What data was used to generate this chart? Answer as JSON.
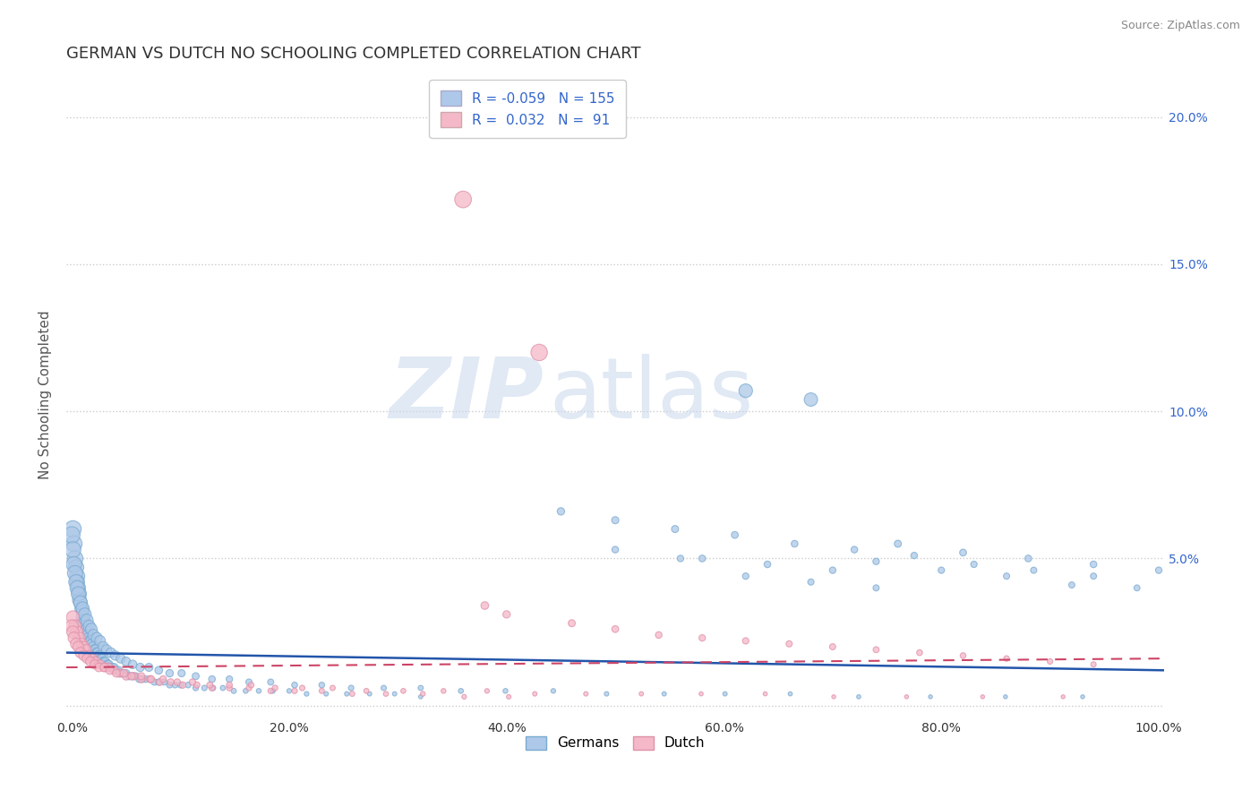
{
  "title": "GERMAN VS DUTCH NO SCHOOLING COMPLETED CORRELATION CHART",
  "source": "Source: ZipAtlas.com",
  "ylabel": "No Schooling Completed",
  "xlabel": "",
  "watermark_zip": "ZIP",
  "watermark_atlas": "atlas",
  "german_R": -0.059,
  "german_N": 155,
  "dutch_R": 0.032,
  "dutch_N": 91,
  "german_color": "#adc8e8",
  "german_edge_color": "#7aaad0",
  "dutch_color": "#f4b8c8",
  "dutch_edge_color": "#e090a8",
  "german_line_color": "#2255aa",
  "dutch_line_color": "#cc4466",
  "background_color": "#ffffff",
  "grid_color": "#cccccc",
  "xlim": [
    -0.005,
    1.005
  ],
  "ylim": [
    -0.004,
    0.215
  ],
  "xticks": [
    0.0,
    0.2,
    0.4,
    0.6,
    0.8,
    1.0
  ],
  "xtick_labels": [
    "0.0%",
    "20.0%",
    "40.0%",
    "60.0%",
    "80.0%",
    "100.0%"
  ],
  "yticks": [
    0.0,
    0.05,
    0.1,
    0.15,
    0.2
  ],
  "ytick_labels_left": [
    "",
    "",
    "",
    "",
    ""
  ],
  "ytick_labels_right": [
    "",
    "5.0%",
    "10.0%",
    "15.0%",
    "20.0%"
  ],
  "legend_labels": [
    "Germans",
    "Dutch"
  ],
  "title_color": "#333333",
  "axis_label_color": "#555555",
  "tick_color": "#333333",
  "stat_color": "#3366cc",
  "german_scatter_x": [
    0.001,
    0.002,
    0.003,
    0.004,
    0.005,
    0.005,
    0.006,
    0.007,
    0.007,
    0.008,
    0.009,
    0.01,
    0.01,
    0.011,
    0.012,
    0.013,
    0.014,
    0.015,
    0.015,
    0.016,
    0.017,
    0.018,
    0.019,
    0.02,
    0.021,
    0.022,
    0.023,
    0.024,
    0.025,
    0.026,
    0.027,
    0.028,
    0.029,
    0.03,
    0.031,
    0.033,
    0.034,
    0.035,
    0.037,
    0.039,
    0.041,
    0.043,
    0.045,
    0.047,
    0.05,
    0.053,
    0.056,
    0.059,
    0.062,
    0.065,
    0.068,
    0.072,
    0.076,
    0.08,
    0.085,
    0.09,
    0.095,
    0.1,
    0.107,
    0.114,
    0.122,
    0.13,
    0.139,
    0.149,
    0.16,
    0.172,
    0.185,
    0.2,
    0.216,
    0.234,
    0.253,
    0.274,
    0.297,
    0.321,
    0.0,
    0.001,
    0.002,
    0.003,
    0.004,
    0.005,
    0.006,
    0.008,
    0.01,
    0.012,
    0.014,
    0.016,
    0.018,
    0.02,
    0.023,
    0.026,
    0.029,
    0.032,
    0.036,
    0.04,
    0.045,
    0.05,
    0.056,
    0.063,
    0.071,
    0.08,
    0.09,
    0.101,
    0.114,
    0.129,
    0.145,
    0.163,
    0.183,
    0.205,
    0.23,
    0.257,
    0.287,
    0.321,
    0.358,
    0.399,
    0.443,
    0.492,
    0.545,
    0.601,
    0.661,
    0.724,
    0.79,
    0.859,
    0.93,
    0.45,
    0.5,
    0.555,
    0.61,
    0.665,
    0.72,
    0.775,
    0.83,
    0.885,
    0.94,
    0.5,
    0.56,
    0.62,
    0.68,
    0.74,
    0.8,
    0.86,
    0.92,
    0.98,
    0.58,
    0.64,
    0.7,
    0.76,
    0.82,
    0.88,
    0.94,
    1.0,
    0.62,
    0.68,
    0.74
  ],
  "german_scatter_y": [
    0.06,
    0.055,
    0.05,
    0.047,
    0.044,
    0.042,
    0.04,
    0.038,
    0.036,
    0.035,
    0.033,
    0.032,
    0.03,
    0.029,
    0.028,
    0.027,
    0.026,
    0.025,
    0.024,
    0.023,
    0.022,
    0.022,
    0.021,
    0.02,
    0.019,
    0.019,
    0.018,
    0.018,
    0.017,
    0.017,
    0.016,
    0.016,
    0.015,
    0.015,
    0.015,
    0.014,
    0.014,
    0.013,
    0.013,
    0.013,
    0.012,
    0.012,
    0.011,
    0.011,
    0.011,
    0.01,
    0.01,
    0.01,
    0.009,
    0.009,
    0.009,
    0.009,
    0.008,
    0.008,
    0.008,
    0.007,
    0.007,
    0.007,
    0.007,
    0.006,
    0.006,
    0.006,
    0.006,
    0.005,
    0.005,
    0.005,
    0.005,
    0.005,
    0.004,
    0.004,
    0.004,
    0.004,
    0.004,
    0.003,
    0.058,
    0.053,
    0.048,
    0.045,
    0.042,
    0.04,
    0.038,
    0.035,
    0.033,
    0.031,
    0.029,
    0.027,
    0.026,
    0.024,
    0.023,
    0.022,
    0.02,
    0.019,
    0.018,
    0.017,
    0.016,
    0.015,
    0.014,
    0.013,
    0.013,
    0.012,
    0.011,
    0.011,
    0.01,
    0.009,
    0.009,
    0.008,
    0.008,
    0.007,
    0.007,
    0.006,
    0.006,
    0.006,
    0.005,
    0.005,
    0.005,
    0.004,
    0.004,
    0.004,
    0.004,
    0.003,
    0.003,
    0.003,
    0.003,
    0.066,
    0.063,
    0.06,
    0.058,
    0.055,
    0.053,
    0.051,
    0.048,
    0.046,
    0.044,
    0.053,
    0.05,
    0.107,
    0.104,
    0.049,
    0.046,
    0.044,
    0.041,
    0.04,
    0.05,
    0.048,
    0.046,
    0.055,
    0.052,
    0.05,
    0.048,
    0.046,
    0.044,
    0.042,
    0.04
  ],
  "german_scatter_s": [
    180,
    170,
    160,
    150,
    145,
    140,
    135,
    130,
    125,
    120,
    115,
    110,
    108,
    105,
    100,
    96,
    92,
    88,
    85,
    82,
    79,
    76,
    73,
    70,
    68,
    65,
    63,
    61,
    59,
    57,
    55,
    53,
    51,
    50,
    48,
    46,
    45,
    43,
    42,
    40,
    39,
    38,
    37,
    35,
    34,
    33,
    32,
    31,
    30,
    29,
    28,
    27,
    26,
    25,
    24,
    23,
    22,
    22,
    21,
    20,
    19,
    18,
    17,
    17,
    16,
    15,
    15,
    14,
    14,
    13,
    13,
    12,
    12,
    11,
    175,
    165,
    155,
    148,
    141,
    135,
    129,
    120,
    112,
    105,
    98,
    92,
    87,
    82,
    77,
    73,
    68,
    64,
    60,
    56,
    53,
    50,
    47,
    44,
    41,
    38,
    36,
    33,
    31,
    29,
    27,
    25,
    24,
    22,
    21,
    19,
    18,
    17,
    16,
    15,
    14,
    13,
    12,
    12,
    11,
    11,
    10,
    10,
    10,
    35,
    33,
    32,
    30,
    29,
    28,
    27,
    26,
    25,
    24,
    28,
    27,
    120,
    115,
    27,
    26,
    25,
    24,
    23,
    29,
    28,
    27,
    32,
    30,
    29,
    28,
    27,
    26,
    25,
    24
  ],
  "dutch_scatter_x": [
    0.001,
    0.003,
    0.005,
    0.007,
    0.009,
    0.011,
    0.013,
    0.016,
    0.019,
    0.022,
    0.026,
    0.03,
    0.034,
    0.039,
    0.044,
    0.05,
    0.057,
    0.064,
    0.072,
    0.081,
    0.091,
    0.102,
    0.115,
    0.129,
    0.145,
    0.163,
    0.183,
    0.205,
    0.23,
    0.258,
    0.289,
    0.323,
    0.361,
    0.402,
    0.0,
    0.001,
    0.002,
    0.004,
    0.006,
    0.008,
    0.011,
    0.014,
    0.017,
    0.021,
    0.025,
    0.03,
    0.035,
    0.041,
    0.048,
    0.055,
    0.064,
    0.073,
    0.084,
    0.097,
    0.111,
    0.127,
    0.145,
    0.165,
    0.187,
    0.212,
    0.24,
    0.271,
    0.305,
    0.342,
    0.382,
    0.426,
    0.473,
    0.524,
    0.579,
    0.638,
    0.701,
    0.768,
    0.838,
    0.912,
    0.36,
    0.38,
    0.4,
    0.43,
    0.46,
    0.5,
    0.54,
    0.58,
    0.62,
    0.66,
    0.7,
    0.74,
    0.78,
    0.82,
    0.86,
    0.9,
    0.94
  ],
  "dutch_scatter_y": [
    0.03,
    0.027,
    0.025,
    0.023,
    0.021,
    0.02,
    0.019,
    0.017,
    0.016,
    0.015,
    0.014,
    0.013,
    0.013,
    0.012,
    0.011,
    0.01,
    0.01,
    0.009,
    0.009,
    0.008,
    0.008,
    0.007,
    0.007,
    0.006,
    0.006,
    0.006,
    0.005,
    0.005,
    0.005,
    0.004,
    0.004,
    0.004,
    0.003,
    0.003,
    0.027,
    0.025,
    0.023,
    0.021,
    0.02,
    0.018,
    0.017,
    0.016,
    0.015,
    0.014,
    0.013,
    0.013,
    0.012,
    0.011,
    0.011,
    0.01,
    0.01,
    0.009,
    0.009,
    0.008,
    0.008,
    0.007,
    0.007,
    0.007,
    0.006,
    0.006,
    0.006,
    0.005,
    0.005,
    0.005,
    0.005,
    0.004,
    0.004,
    0.004,
    0.004,
    0.004,
    0.003,
    0.003,
    0.003,
    0.003,
    0.172,
    0.034,
    0.031,
    0.12,
    0.028,
    0.026,
    0.024,
    0.023,
    0.022,
    0.021,
    0.02,
    0.019,
    0.018,
    0.017,
    0.016,
    0.015,
    0.014
  ],
  "dutch_scatter_s": [
    110,
    100,
    92,
    86,
    80,
    75,
    71,
    65,
    61,
    57,
    53,
    50,
    47,
    44,
    41,
    39,
    36,
    34,
    32,
    30,
    28,
    27,
    25,
    24,
    22,
    21,
    20,
    19,
    18,
    17,
    16,
    15,
    14,
    13,
    105,
    96,
    89,
    82,
    76,
    71,
    65,
    61,
    57,
    53,
    49,
    46,
    43,
    40,
    38,
    35,
    33,
    31,
    29,
    27,
    26,
    24,
    23,
    21,
    20,
    19,
    18,
    17,
    16,
    15,
    14,
    13,
    13,
    12,
    11,
    11,
    10,
    10,
    10,
    10,
    180,
    38,
    35,
    175,
    32,
    30,
    28,
    27,
    26,
    25,
    24,
    23,
    22,
    21,
    20,
    19,
    18
  ]
}
